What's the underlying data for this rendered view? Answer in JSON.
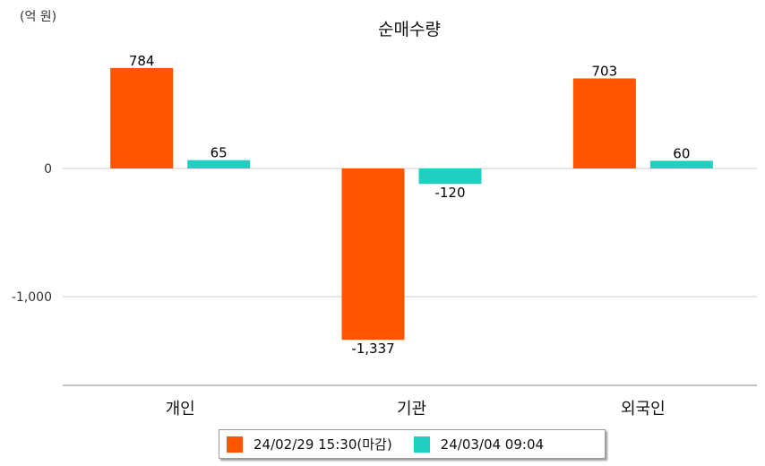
{
  "unit_label": "(억 원)",
  "chart_data": {
    "type": "bar",
    "title": "순매수량",
    "categories": [
      "개인",
      "기관",
      "외국인"
    ],
    "series": [
      {
        "name": "24/02/29 15:30(마감)",
        "color": "#ff5500",
        "values": [
          784,
          -1337,
          703
        ],
        "labels": [
          "784",
          "-1,337",
          "703"
        ]
      },
      {
        "name": "24/03/04 09:04",
        "color": "#1fcfbf",
        "values": [
          65,
          -120,
          60
        ],
        "labels": [
          "65",
          "-120",
          "60"
        ]
      }
    ],
    "yticks": [
      0,
      -1000
    ],
    "ytick_labels": [
      "0",
      "-1,000"
    ],
    "ylim": [
      -1660,
      1000
    ],
    "grid": true,
    "legend_position": "bottom"
  }
}
